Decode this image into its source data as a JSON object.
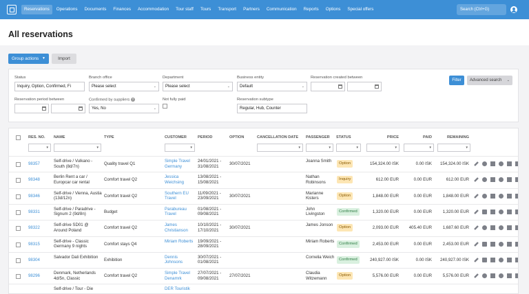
{
  "nav": {
    "items": [
      "Reservations",
      "Operations",
      "Documents",
      "Finances",
      "Accommodation",
      "Tour staff",
      "Tours",
      "Transport",
      "Partners",
      "Communication",
      "Reports",
      "Options",
      "Special offers"
    ],
    "search_placeholder": "Search (Ctrl+G)"
  },
  "page": {
    "title": "All reservations"
  },
  "toolbar": {
    "group_actions": "Group actions",
    "import": "Import"
  },
  "filters": {
    "status": {
      "label": "Status",
      "value": "Inquiry, Option, Confirmed, Fi"
    },
    "branch_office": {
      "label": "Branch office",
      "value": "Please select"
    },
    "department": {
      "label": "Department",
      "value": "Please select"
    },
    "business_entity": {
      "label": "Business entity",
      "value": "Default"
    },
    "created_between": {
      "label": "Reservation created between"
    },
    "period_between": {
      "label": "Reservation period between"
    },
    "confirmed_by_suppliers": {
      "label": "Confirmed by suppliers",
      "value": "Yes, No"
    },
    "not_fully_paid": {
      "label": "Not fully paid"
    },
    "subtype": {
      "label": "Reservation subtype",
      "value": "Regular, Hub, Counter"
    },
    "filter_button": "Filter",
    "advanced_search": "Advanced search"
  },
  "table": {
    "headers": {
      "res_no": "RES. NO.",
      "name": "NAME",
      "type": "TYPE",
      "customer": "CUSTOMER",
      "period": "PERIOD",
      "option": "OPTION",
      "cancellation_date": "CANCELLATION DATE",
      "passenger": "PASSENGER",
      "status": "STATUS",
      "price": "PRICE",
      "paid": "PAID",
      "remaining": "REMAINING"
    },
    "rows": [
      {
        "res_no": "98357",
        "name": "Self-drive / Vulkano - South (8d/7n)",
        "type": "Quality travel Q1",
        "customer": "Simple Travel Germany",
        "period": "24/01/2021 - 31/08/2021",
        "option": "30/07/2021",
        "cancellation": "",
        "passenger": "Joanna Smith",
        "status": "Option",
        "price": "154,324.00 ISK",
        "paid": "0.00 ISK",
        "remaining": "154,324.00 ISK"
      },
      {
        "res_no": "98348",
        "name": "Berlin Rent a car / Europcar car rental",
        "type": "Comfort travel Q2",
        "customer": "Jessica Weichsing",
        "period": "13/08/2021 - 15/08/2021",
        "option": "",
        "cancellation": "",
        "passenger": "Nathan Robinsons",
        "status": "Inquiry",
        "price": "612.00 EUR",
        "paid": "0.00 EUR",
        "remaining": "612.00 EUR"
      },
      {
        "res_no": "98346",
        "name": "Self-drive / Vienna, Austia (13d/12n)",
        "type": "Comfort travel Q2",
        "customer": "Southern EU Travel",
        "period": "11/09/2021 - 23/09/2021",
        "option": "30/07/2021",
        "cancellation": "",
        "passenger": "Marianne Kisters",
        "status": "Option",
        "price": "1,848.00 EUR",
        "paid": "0.00 EUR",
        "remaining": "1,848.00 EUR"
      },
      {
        "res_no": "98331",
        "name": "Self-drive / Paradrive - Signum 2 (9d/8n)",
        "type": "Budget",
        "customer": "Parabureau Travel",
        "period": "01/08/2021 - 09/08/2021",
        "option": "",
        "cancellation": "",
        "passenger": "John Livingston",
        "status": "Confirmed",
        "price": "1,320.00 EUR",
        "paid": "0.00 EUR",
        "remaining": "1,320.00 EUR"
      },
      {
        "res_no": "98322",
        "name": "Self-drive SD01 @ Around Poland",
        "type": "Comfort travel Q2",
        "customer": "James Christianson",
        "period": "10/10/2021 - 17/10/2021",
        "option": "30/07/2021",
        "cancellation": "",
        "passenger": "James Jonson",
        "status": "Option",
        "price": "2,093.00 EUR",
        "paid": "405.40 EUR",
        "remaining": "1,687.60 EUR"
      },
      {
        "res_no": "98315",
        "name": "Self-drive - Classic Germany 9 nights",
        "type": "Comfort stays Q4",
        "customer": "Miriam Roberts",
        "period": "19/09/2021 - 28/09/2021",
        "option": "",
        "cancellation": "",
        "passenger": "Miriam Roberts",
        "status": "Confirmed",
        "price": "2,453.00 EUR",
        "paid": "0.00 EUR",
        "remaining": "2,453.00 EUR"
      },
      {
        "res_no": "98304",
        "name": "Salvador Dali Exhibition",
        "type": "Exhibition",
        "customer": "Dennis Johnsons",
        "period": "30/07/2021 - 01/08/2021",
        "option": "",
        "cancellation": "",
        "passenger": "Cornelia Weich",
        "status": "Confirmed",
        "price": "240,927.00 ISK",
        "paid": "0.00 ISK",
        "remaining": "240,927.00 ISK"
      },
      {
        "res_no": "98296",
        "name": "Denmark, Netherlands 4d/5n, Classic",
        "type": "Comfort travel Q2",
        "customer": "Simple Travel Denamrk",
        "period": "27/07/2021 - 09/08/2021",
        "option": "27/07/2021",
        "cancellation": "",
        "passenger": "Claudia Witzemann",
        "status": "Option",
        "price": "5,576.00 EUR",
        "paid": "0.00 EUR",
        "remaining": "5,576.00 EUR"
      },
      {
        "res_no": "",
        "name": "Self-drive / Tour - Die",
        "type": "",
        "customer": "DER Touristik",
        "period": "",
        "option": "",
        "cancellation": "",
        "passenger": "",
        "status": "",
        "price": "",
        "paid": "",
        "remaining": ""
      }
    ]
  }
}
